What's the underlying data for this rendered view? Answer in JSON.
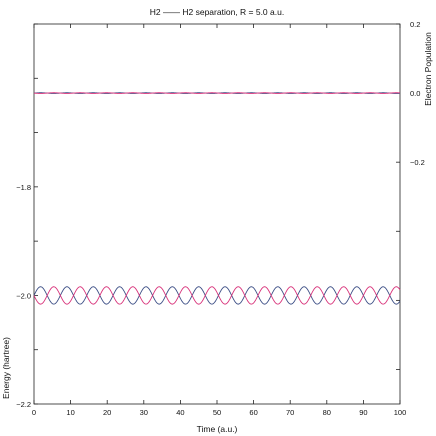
{
  "chart_data": {
    "type": "line",
    "title": "H2 —— H2 separation, R = 5.0 a.u.",
    "xlabel": "Time (a.u.)",
    "ylabel_left": "Energy (hartree)",
    "ylabel_right": "Electron Population",
    "xlim": [
      0,
      100
    ],
    "ylim_left": [
      -2.2,
      -1.5
    ],
    "ylim_right": [
      -0.9,
      0.2
    ],
    "xticks": [
      0,
      10,
      20,
      30,
      40,
      50,
      60,
      70,
      80,
      90,
      100
    ],
    "yticks_left": [
      -2.2,
      -2.0,
      -1.8
    ],
    "yticks_right": [
      -0.2,
      0.0,
      0.2
    ],
    "ytick_labels_left": [
      "−2.2",
      "−2.0",
      "−1.8"
    ],
    "ytick_labels_right": [
      "−0.2",
      "0.0",
      "0.2"
    ],
    "grid": false,
    "series": [
      {
        "axis": "left",
        "color": "#3d4f86",
        "values": "-2.0 + 0.016*sin(2*pi*t/7.2)"
      },
      {
        "axis": "left",
        "color": "#d8327a",
        "values": "-2.0 - 0.016*sin(2*pi*t/7.2)"
      },
      {
        "axis": "right",
        "color": "#3d4f86",
        "values": "0.0 + 0.001*sin(2*pi*t/7.2)"
      },
      {
        "axis": "right",
        "color": "#d8327a",
        "values": "0.0 - 0.001*sin(2*pi*t/7.2)"
      }
    ],
    "period": 7.2,
    "amplitude_energy": 0.016,
    "amplitude_population": 0.001,
    "center_energy": -2.0,
    "center_population": 0.0
  }
}
